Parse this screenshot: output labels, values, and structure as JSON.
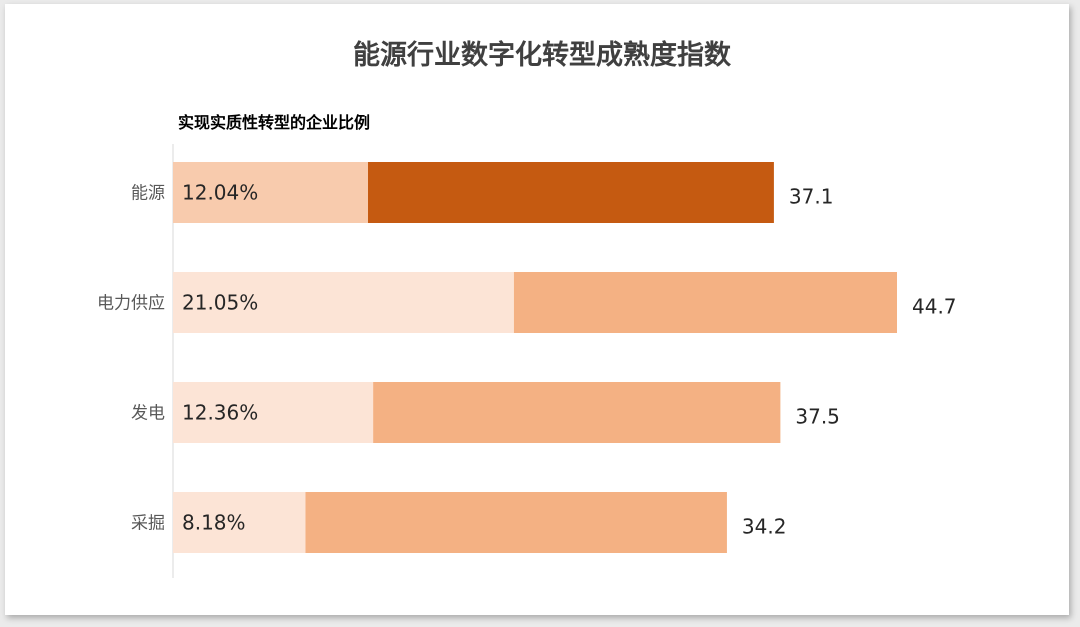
{
  "chart_data": {
    "type": "bar",
    "orientation": "horizontal",
    "title": "能源行业数字化转型成熟度指数",
    "subtitle": "实现实质性转型的企业比例",
    "categories": [
      "能源",
      "电力供应",
      "发电",
      "采掘"
    ],
    "series": [
      {
        "values": [
          12.04,
          21.05,
          12.36,
          8.18
        ],
        "value_labels": [
          "12.04%",
          "21.05%",
          "12.36%",
          "8.18%"
        ]
      },
      {
        "values": [
          37.1,
          44.7,
          37.5,
          34.2
        ],
        "value_labels": [
          "37.1",
          "44.7",
          "37.5",
          "34.2"
        ]
      }
    ],
    "highlight_category": "能源",
    "colors": {
      "highlight_outer": "#c55a11",
      "highlight_inner": "#f8cbad",
      "outer": "#f4b183",
      "inner": "#fce4d6",
      "axis": "#d9d9d9"
    },
    "xlim": [
      0,
      44.7
    ],
    "grid": false,
    "legend": "none"
  }
}
